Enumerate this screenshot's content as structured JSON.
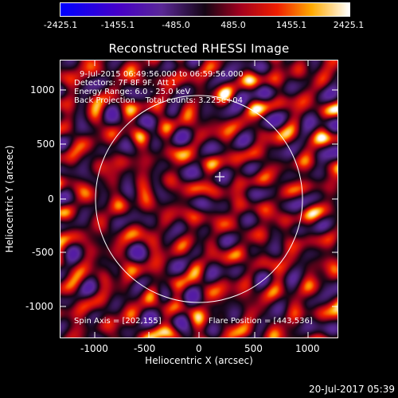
{
  "colorbar": {
    "labels": [
      "-2425.1",
      "-1455.1",
      "-485.0",
      "485.0",
      "1455.1",
      "2425.1"
    ]
  },
  "plot": {
    "title": "Reconstructed RHESSI Image",
    "xlabel": "Heliocentric X (arcsec)",
    "ylabel": "Heliocentric Y (arcsec)",
    "x_ticks": [
      "-1000",
      "-500",
      "0",
      "500",
      "1000"
    ],
    "y_ticks": [
      "1000",
      "500",
      "0",
      "-500",
      "-1000"
    ],
    "info_lines": [
      "9-Jul-2015 06:49:56.000 to 06:59:56.000",
      "Detectors: 7F 8F 9F, Att 1",
      "Energy Range: 6.0 - 25.0 keV",
      "Back Projection    Total counts: 3.225e+04"
    ],
    "spin_axis": "Spin Axis = [202,155]",
    "flare_position": "Flare Position = [443,536]"
  },
  "footer": {
    "timestamp": "20-Jul-2017 05:39"
  },
  "colors": {
    "background": "#000000",
    "foreground": "#ffffff"
  }
}
